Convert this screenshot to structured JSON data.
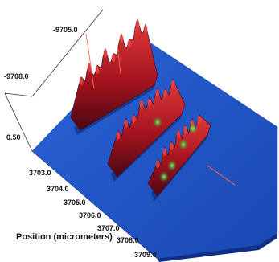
{
  "chart_data": {
    "type": "surface3d",
    "title": "",
    "xlabel": "Position (micrometers)",
    "ylabel": "",
    "zlabel": "",
    "x_ticks": [
      "3703.0",
      "3704.0",
      "3705.0",
      "3706.0",
      "3707.0",
      "3708.0",
      "3709.0"
    ],
    "y_ticks": [
      "-9705.0",
      "-9708.0"
    ],
    "z_ticks": [
      "0.50"
    ],
    "ridges": [
      {
        "name": "",
        "peaks": [
          0.55,
          0.7,
          0.6,
          0.8,
          0.65,
          0.9,
          0.75,
          1.0,
          0.85
        ]
      },
      {
        "name": "",
        "peaks": [
          0.5,
          0.6,
          0.55,
          0.7,
          0.6,
          0.65,
          0.5,
          0.55
        ]
      },
      {
        "name": "",
        "peaks": [
          0.35,
          0.45,
          0.4,
          0.5,
          0.42,
          0.38,
          0.3
        ]
      }
    ],
    "grid": false,
    "colors": {
      "background": "#ffffff",
      "base": "#1f56c8",
      "base_dark": "#10307e",
      "peak": "#c8202a",
      "peak_dark": "#5a0a14",
      "highlight": "#1fbf3a",
      "marker": "#ff6a4a",
      "axis": "#333333"
    }
  }
}
